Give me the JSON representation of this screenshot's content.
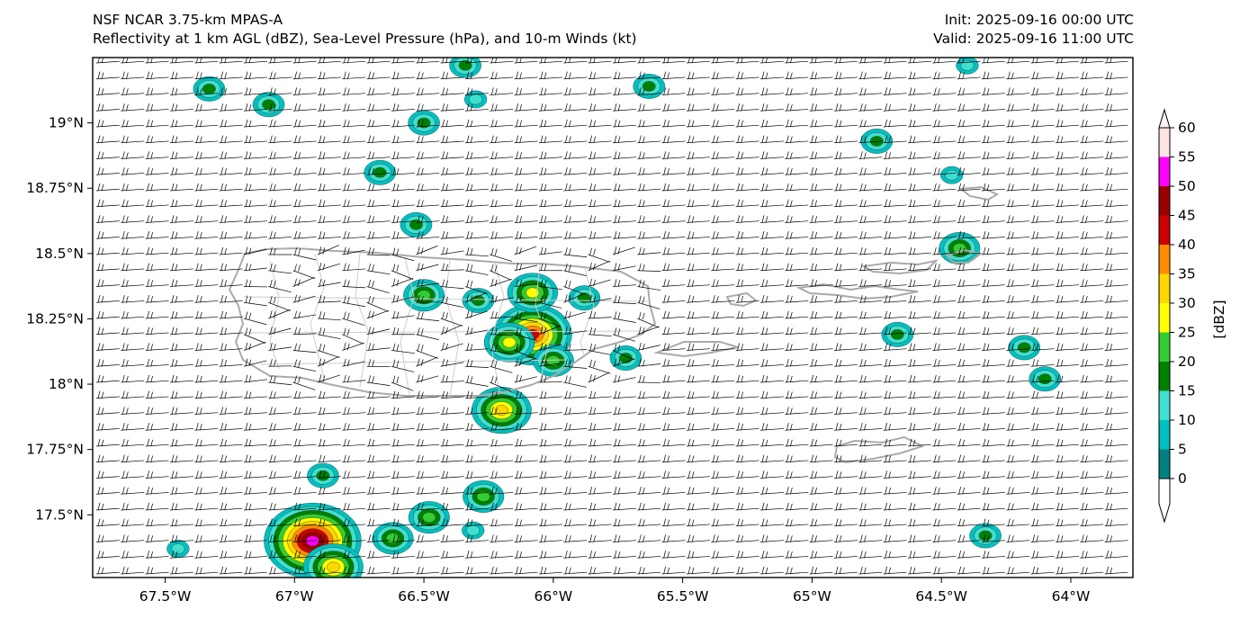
{
  "header": {
    "title_line1": "NSF NCAR 3.75-km MPAS-A",
    "title_line2": "Reflectivity at 1 km AGL (dBZ), Sea-Level Pressure (hPa), and 10-m Winds (kt)",
    "init": "Init: 2025-09-16 00:00 UTC",
    "valid": "Valid: 2025-09-16 11:00 UTC"
  },
  "map": {
    "lon_range": [
      -67.78,
      -63.76
    ],
    "lat_range": [
      17.26,
      19.25
    ],
    "x_tick_labels": [
      {
        "lon": -67.5,
        "label": "67.5°W"
      },
      {
        "lon": -67.0,
        "label": "67°W"
      },
      {
        "lon": -66.5,
        "label": "66.5°W"
      },
      {
        "lon": -66.0,
        "label": "66°W"
      },
      {
        "lon": -65.5,
        "label": "65.5°W"
      },
      {
        "lon": -65.0,
        "label": "65°W"
      },
      {
        "lon": -64.5,
        "label": "64.5°W"
      },
      {
        "lon": -64.0,
        "label": "64°W"
      }
    ],
    "y_tick_labels": [
      {
        "lat": 19.0,
        "label": "19°N"
      },
      {
        "lat": 18.75,
        "label": "18.75°N"
      },
      {
        "lat": 18.5,
        "label": "18.5°N"
      },
      {
        "lat": 18.25,
        "label": "18.25°N"
      },
      {
        "lat": 18.0,
        "label": "18°N"
      },
      {
        "lat": 17.75,
        "label": "17.75°N"
      },
      {
        "lat": 17.5,
        "label": "17.5°N"
      }
    ],
    "coastline_color": "#aaaaaa",
    "barb_color": "#000000"
  },
  "colorbar": {
    "unit_label": "[dBZ]",
    "levels": [
      {
        "value": 0,
        "label": "0"
      },
      {
        "value": 5,
        "label": "5"
      },
      {
        "value": 10,
        "label": "10"
      },
      {
        "value": 15,
        "label": "15"
      },
      {
        "value": 20,
        "label": "20"
      },
      {
        "value": 25,
        "label": "25"
      },
      {
        "value": 30,
        "label": "30"
      },
      {
        "value": 35,
        "label": "35"
      },
      {
        "value": 40,
        "label": "40"
      },
      {
        "value": 45,
        "label": "45"
      },
      {
        "value": 50,
        "label": "50"
      },
      {
        "value": 55,
        "label": "55"
      },
      {
        "value": 60,
        "label": "60"
      }
    ],
    "colors": [
      "#008080",
      "#00c0c0",
      "#40e0d0",
      "#008000",
      "#32cd32",
      "#ffff00",
      "#ffd700",
      "#ff8c00",
      "#cc0000",
      "#990000",
      "#ff00ff",
      "#ffe4e1"
    ],
    "under_color": "#ffffff",
    "over_color": "#fff0f5"
  },
  "reflectivity_cells": [
    {
      "lon": -66.93,
      "lat": 17.4,
      "peak": 50
    },
    {
      "lon": -66.85,
      "lat": 17.3,
      "peak": 30
    },
    {
      "lon": -66.08,
      "lat": 18.19,
      "peak": 40
    },
    {
      "lon": -66.17,
      "lat": 18.16,
      "peak": 25
    },
    {
      "lon": -66.2,
      "lat": 17.9,
      "peak": 30
    },
    {
      "lon": -66.08,
      "lat": 18.35,
      "peak": 25
    },
    {
      "lon": -66.5,
      "lat": 18.34,
      "peak": 20
    },
    {
      "lon": -66.0,
      "lat": 18.09,
      "peak": 20
    },
    {
      "lon": -66.27,
      "lat": 17.57,
      "peak": 20
    },
    {
      "lon": -66.48,
      "lat": 17.49,
      "peak": 20
    },
    {
      "lon": -66.62,
      "lat": 17.41,
      "peak": 20
    },
    {
      "lon": -64.43,
      "lat": 18.52,
      "peak": 20
    },
    {
      "lon": -66.29,
      "lat": 18.32,
      "peak": 15
    },
    {
      "lon": -65.88,
      "lat": 18.33,
      "peak": 15
    },
    {
      "lon": -65.72,
      "lat": 18.1,
      "peak": 15
    },
    {
      "lon": -64.18,
      "lat": 18.14,
      "peak": 15
    },
    {
      "lon": -66.53,
      "lat": 18.61,
      "peak": 15
    },
    {
      "lon": -66.89,
      "lat": 17.65,
      "peak": 15
    },
    {
      "lon": -67.33,
      "lat": 19.13,
      "peak": 15
    },
    {
      "lon": -66.67,
      "lat": 18.81,
      "peak": 15
    },
    {
      "lon": -65.63,
      "lat": 19.14,
      "peak": 15
    },
    {
      "lon": -64.75,
      "lat": 18.93,
      "peak": 15
    },
    {
      "lon": -66.5,
      "lat": 19.0,
      "peak": 15
    },
    {
      "lon": -67.1,
      "lat": 19.07,
      "peak": 15
    },
    {
      "lon": -64.33,
      "lat": 17.42,
      "peak": 15
    },
    {
      "lon": -64.1,
      "lat": 18.02,
      "peak": 15
    },
    {
      "lon": -64.67,
      "lat": 18.19,
      "peak": 15
    },
    {
      "lon": -66.34,
      "lat": 19.22,
      "peak": 15
    },
    {
      "lon": -64.4,
      "lat": 19.22,
      "peak": 10
    },
    {
      "lon": -66.3,
      "lat": 19.09,
      "peak": 10
    },
    {
      "lon": -66.31,
      "lat": 17.44,
      "peak": 10
    },
    {
      "lon": -67.45,
      "lat": 17.37,
      "peak": 10
    },
    {
      "lon": -64.46,
      "lat": 18.8,
      "peak": 10
    }
  ]
}
